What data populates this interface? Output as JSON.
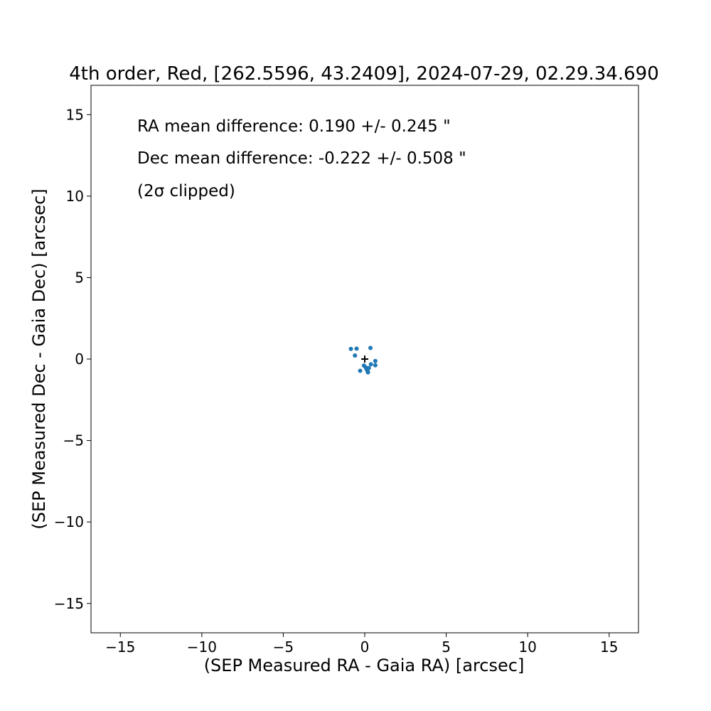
{
  "chart_data": {
    "type": "scatter",
    "title": "4th order, Red, [262.5596, 43.2409], 2024-07-29, 02.29.34.690",
    "xlabel": "(SEP Measured RA - Gaia RA) [arcsec]",
    "ylabel": "(SEP Measured Dec - Gaia Dec) [arcsec]",
    "xlim": [
      -16.8,
      16.8
    ],
    "ylim": [
      -16.8,
      16.8
    ],
    "xticks": [
      -15,
      -10,
      -5,
      0,
      5,
      10,
      15
    ],
    "yticks": [
      -15,
      -10,
      -5,
      0,
      5,
      10,
      15
    ],
    "xtick_labels": [
      "−15",
      "−10",
      "−5",
      "0",
      "5",
      "10",
      "15"
    ],
    "ytick_labels": [
      "−15",
      "−10",
      "−5",
      "0",
      "5",
      "10",
      "15"
    ],
    "grid": false,
    "point_color": "#1f77b4",
    "marker_color": "#000000",
    "points": [
      {
        "x": -0.85,
        "y": 0.62
      },
      {
        "x": -0.5,
        "y": 0.64
      },
      {
        "x": -0.6,
        "y": 0.22
      },
      {
        "x": 0.35,
        "y": 0.68
      },
      {
        "x": -0.28,
        "y": -0.72
      },
      {
        "x": -0.05,
        "y": -0.4
      },
      {
        "x": 0.05,
        "y": -0.5
      },
      {
        "x": 0.12,
        "y": -0.62
      },
      {
        "x": 0.18,
        "y": -0.75
      },
      {
        "x": 0.2,
        "y": -0.82
      },
      {
        "x": 0.15,
        "y": -0.68
      },
      {
        "x": 0.25,
        "y": -0.55
      },
      {
        "x": 0.38,
        "y": -0.32
      },
      {
        "x": 0.65,
        "y": -0.12
      },
      {
        "x": 0.65,
        "y": -0.38
      }
    ],
    "mean_marker": {
      "x": 0.0,
      "y": 0.0,
      "symbol": "+"
    },
    "annotations": [
      "RA mean difference: 0.190 +/- 0.245 \"",
      "Dec mean difference: -0.222 +/- 0.508 \"",
      "(2σ clipped)"
    ]
  }
}
